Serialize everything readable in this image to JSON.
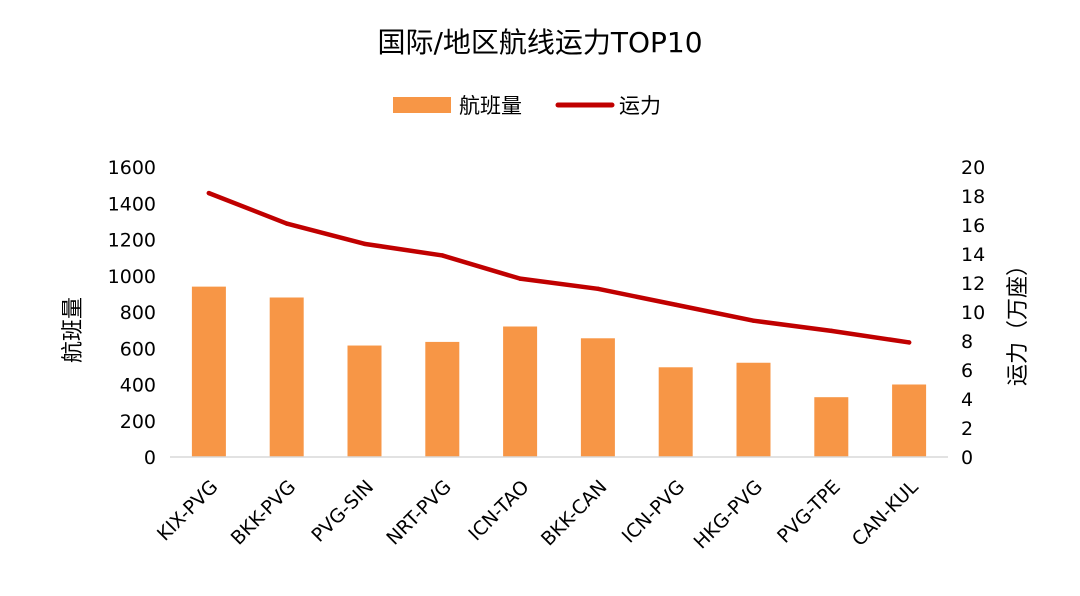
{
  "chart_data": {
    "type": "bar",
    "title": "国际/地区航线运力TOP10",
    "categories": [
      "KIX-PVG",
      "BKK-PVG",
      "PVG-SIN",
      "NRT-PVG",
      "ICN-TAO",
      "BKK-CAN",
      "ICN-PVG",
      "HKG-PVG",
      "PVG-TPE",
      "CAN-KUL"
    ],
    "series": [
      {
        "name": "航班量",
        "type": "bar",
        "axis": "left",
        "color": "#F79646",
        "values": [
          940,
          880,
          615,
          635,
          720,
          655,
          495,
          520,
          330,
          400
        ]
      },
      {
        "name": "运力",
        "type": "line",
        "axis": "right",
        "color": "#C00000",
        "values": [
          18.2,
          16.1,
          14.7,
          13.9,
          12.3,
          11.6,
          10.5,
          9.4,
          8.7,
          7.9
        ]
      }
    ],
    "y_left": {
      "label": "航班量",
      "ylim": [
        0,
        1600
      ],
      "ticks": [
        "0",
        "200",
        "400",
        "600",
        "800",
        "1000",
        "1200",
        "1400",
        "1600"
      ]
    },
    "y_right": {
      "label": "运力（万座）",
      "ylim": [
        0,
        20
      ],
      "ticks": [
        "0",
        "2",
        "4",
        "6",
        "8",
        "10",
        "12",
        "14",
        "16",
        "18",
        "20"
      ]
    },
    "legend": {
      "position": "top-center"
    },
    "grid": false
  }
}
